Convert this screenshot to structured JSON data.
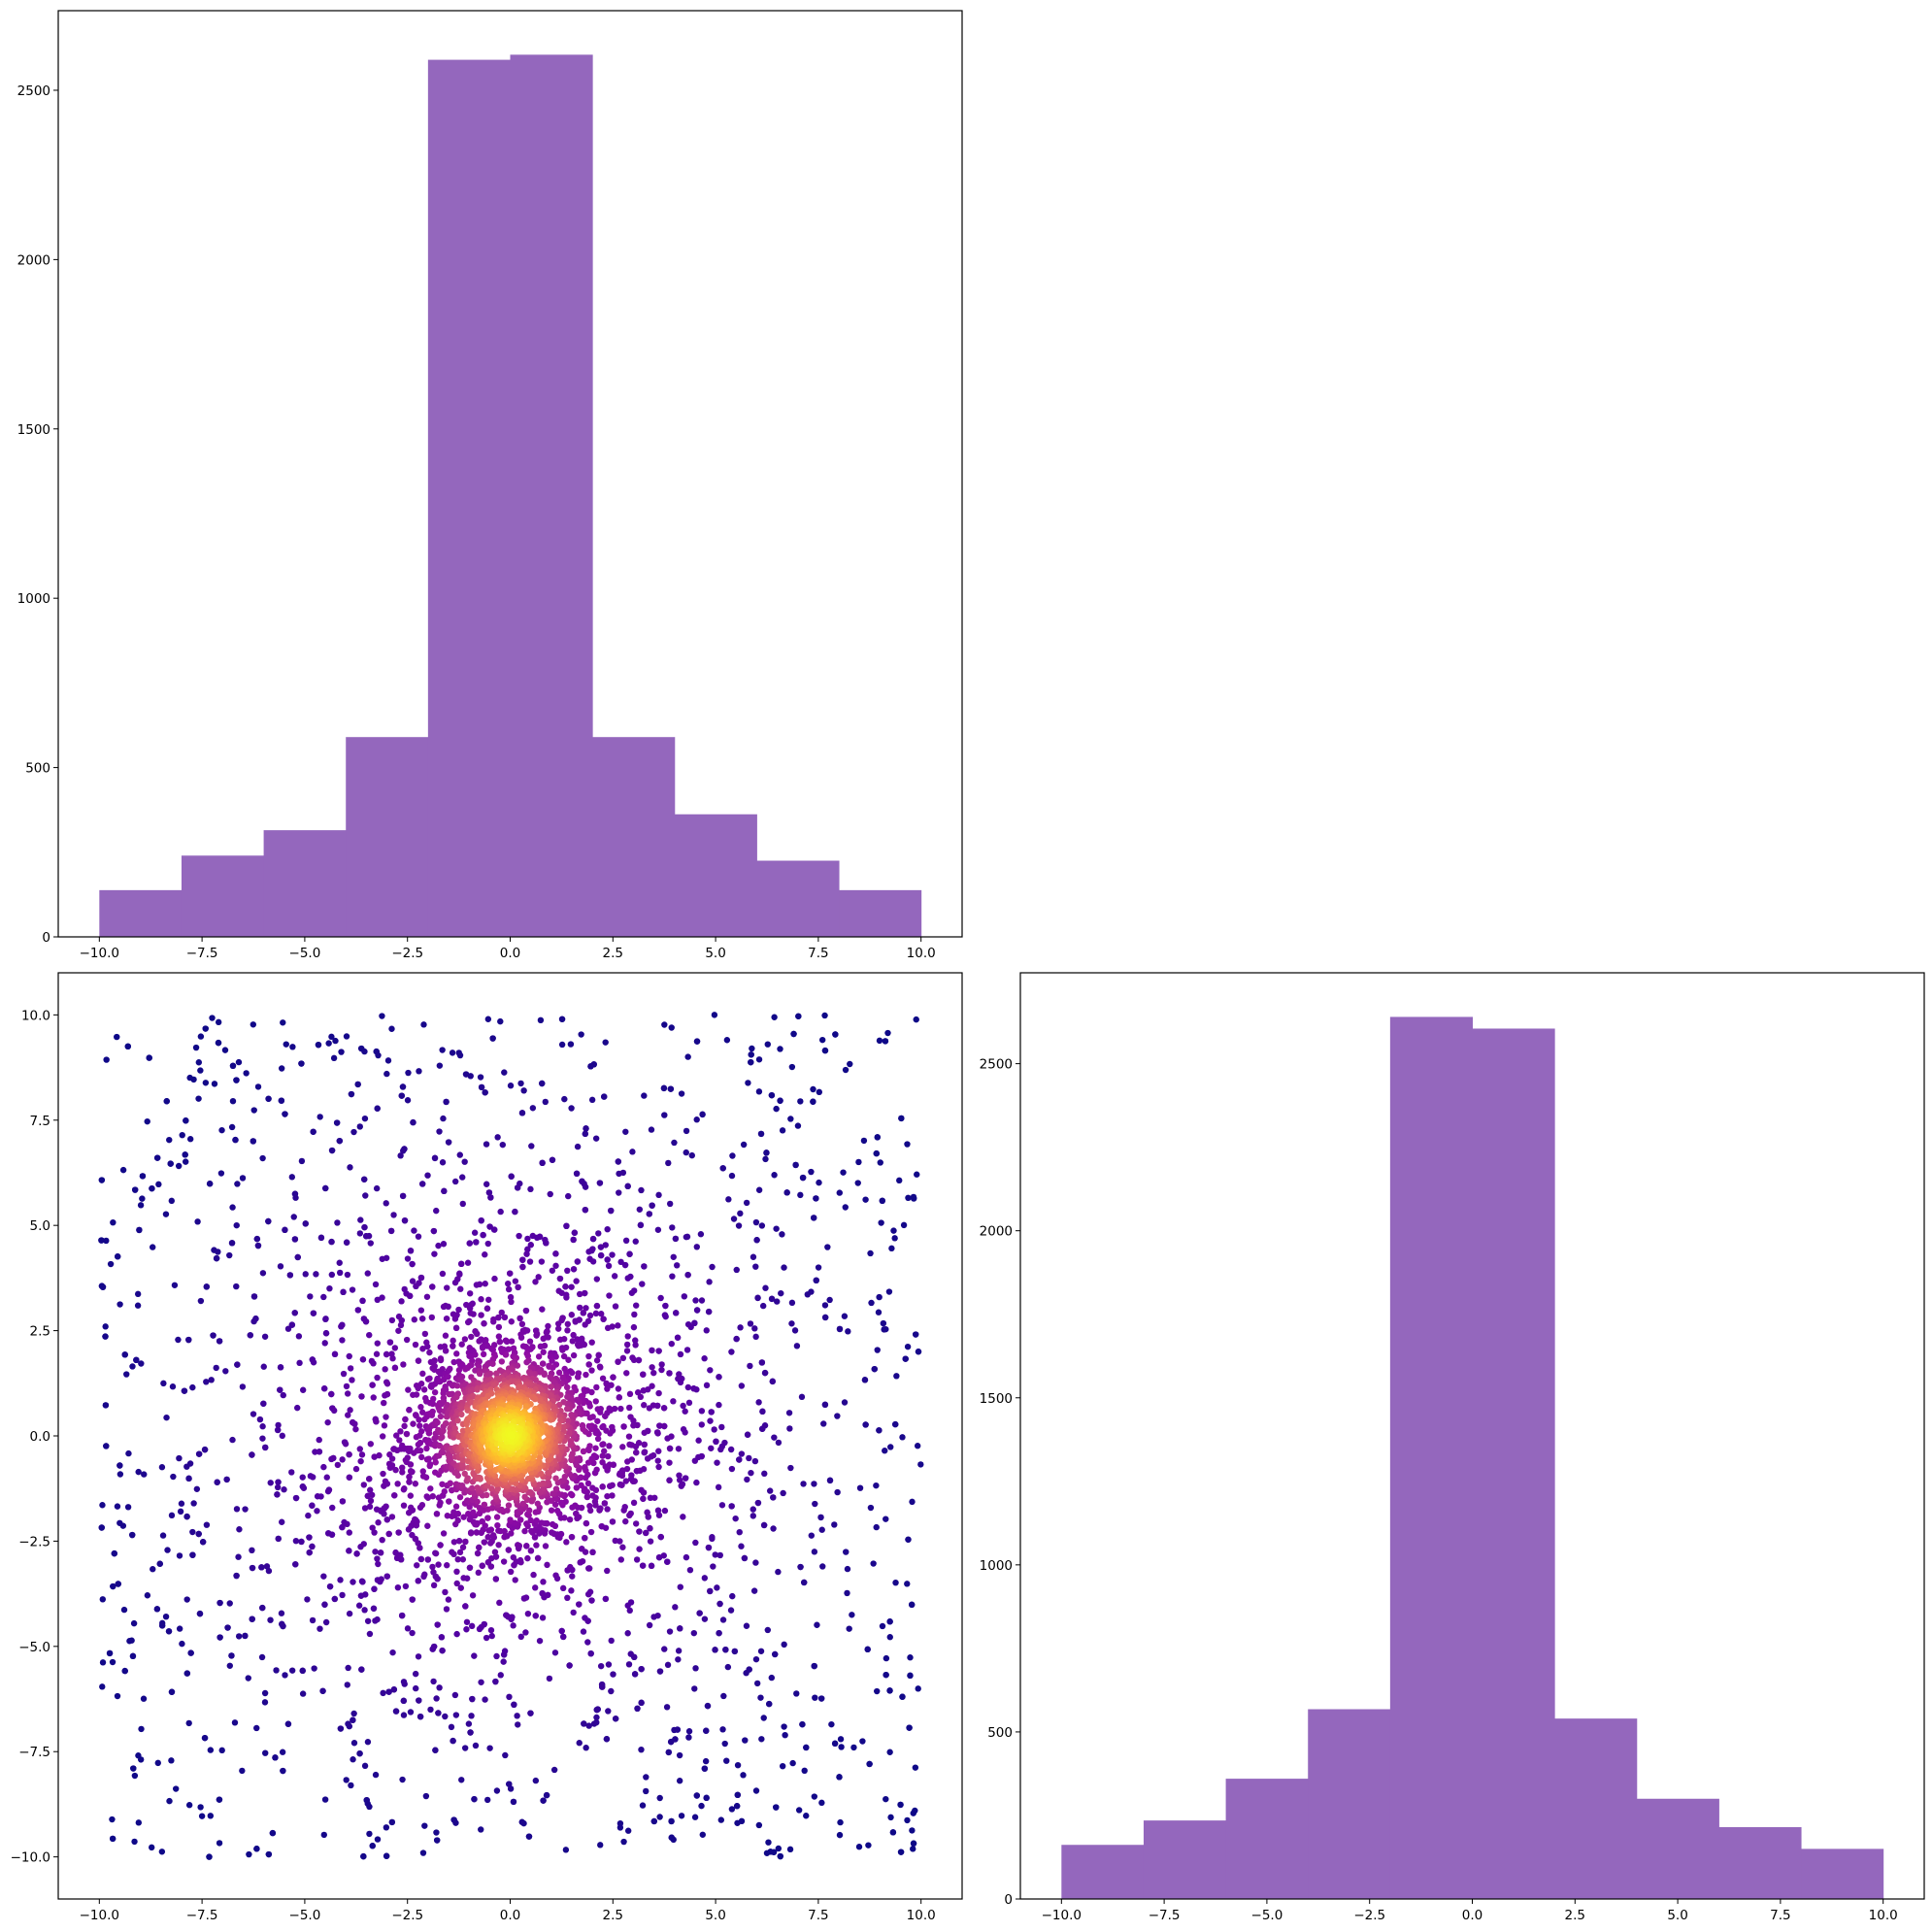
{
  "chart_data": [
    {
      "type": "bar",
      "kind": "histogram",
      "position": "top-left",
      "color": "#9467bd",
      "bin_edges": [
        -10,
        -8,
        -6,
        -4,
        -2,
        0,
        2,
        4,
        6,
        8,
        10
      ],
      "values": [
        138,
        240,
        315,
        590,
        2590,
        2605,
        590,
        362,
        225,
        138
      ],
      "xlim": [
        -11,
        11
      ],
      "ylim": [
        0,
        2735
      ],
      "xticks": [
        -10,
        -7.5,
        -5,
        -2.5,
        0,
        2.5,
        5,
        7.5,
        10
      ],
      "xtick_labels": [
        "−10.0",
        "−7.5",
        "−5.0",
        "−2.5",
        "0.0",
        "2.5",
        "5.0",
        "7.5",
        "10.0"
      ],
      "yticks": [
        0,
        500,
        1000,
        1500,
        2000,
        2500
      ],
      "ytick_labels": [
        "0",
        "500",
        "1000",
        "1500",
        "2000",
        "2500"
      ]
    },
    {
      "type": "scatter",
      "position": "bottom-left",
      "colormap": "plasma",
      "n_points": 5000,
      "x_range": [
        -10,
        10
      ],
      "y_range": [
        -10,
        10
      ],
      "distribution": "symmetric about (0, 0): dense core near origin plus uniform background over the square",
      "color_encoding": "point density; bright yellow at the origin core fading to dark blue-violet at the edges",
      "xlim": [
        -11,
        11
      ],
      "ylim": [
        -11,
        11
      ],
      "xticks": [
        -10,
        -7.5,
        -5,
        -2.5,
        0,
        2.5,
        5,
        7.5,
        10
      ],
      "xtick_labels": [
        "−10.0",
        "−7.5",
        "−5.0",
        "−2.5",
        "0.0",
        "2.5",
        "5.0",
        "7.5",
        "10.0"
      ],
      "yticks": [
        -10,
        -7.5,
        -5,
        -2.5,
        0,
        2.5,
        5,
        7.5,
        10
      ],
      "ytick_labels": [
        "−10.0",
        "−7.5",
        "−5.0",
        "−2.5",
        "0.0",
        "2.5",
        "5.0",
        "7.5",
        "10.0"
      ]
    },
    {
      "type": "bar",
      "kind": "histogram",
      "position": "bottom-right",
      "color": "#9467bd",
      "bin_edges": [
        -10,
        -8,
        -6,
        -4,
        -2,
        0,
        2,
        4,
        6,
        8,
        10
      ],
      "values": [
        162,
        235,
        360,
        568,
        2640,
        2605,
        540,
        300,
        215,
        150
      ],
      "xlim": [
        -11,
        11
      ],
      "ylim": [
        0,
        2772
      ],
      "xticks": [
        -10,
        -7.5,
        -5,
        -2.5,
        0,
        2.5,
        5,
        7.5,
        10
      ],
      "xtick_labels": [
        "−10.0",
        "−7.5",
        "−5.0",
        "−2.5",
        "0.0",
        "2.5",
        "5.0",
        "7.5",
        "10.0"
      ],
      "yticks": [
        0,
        500,
        1000,
        1500,
        2000,
        2500
      ],
      "ytick_labels": [
        "0",
        "500",
        "1000",
        "1500",
        "2000",
        "2500"
      ]
    }
  ]
}
